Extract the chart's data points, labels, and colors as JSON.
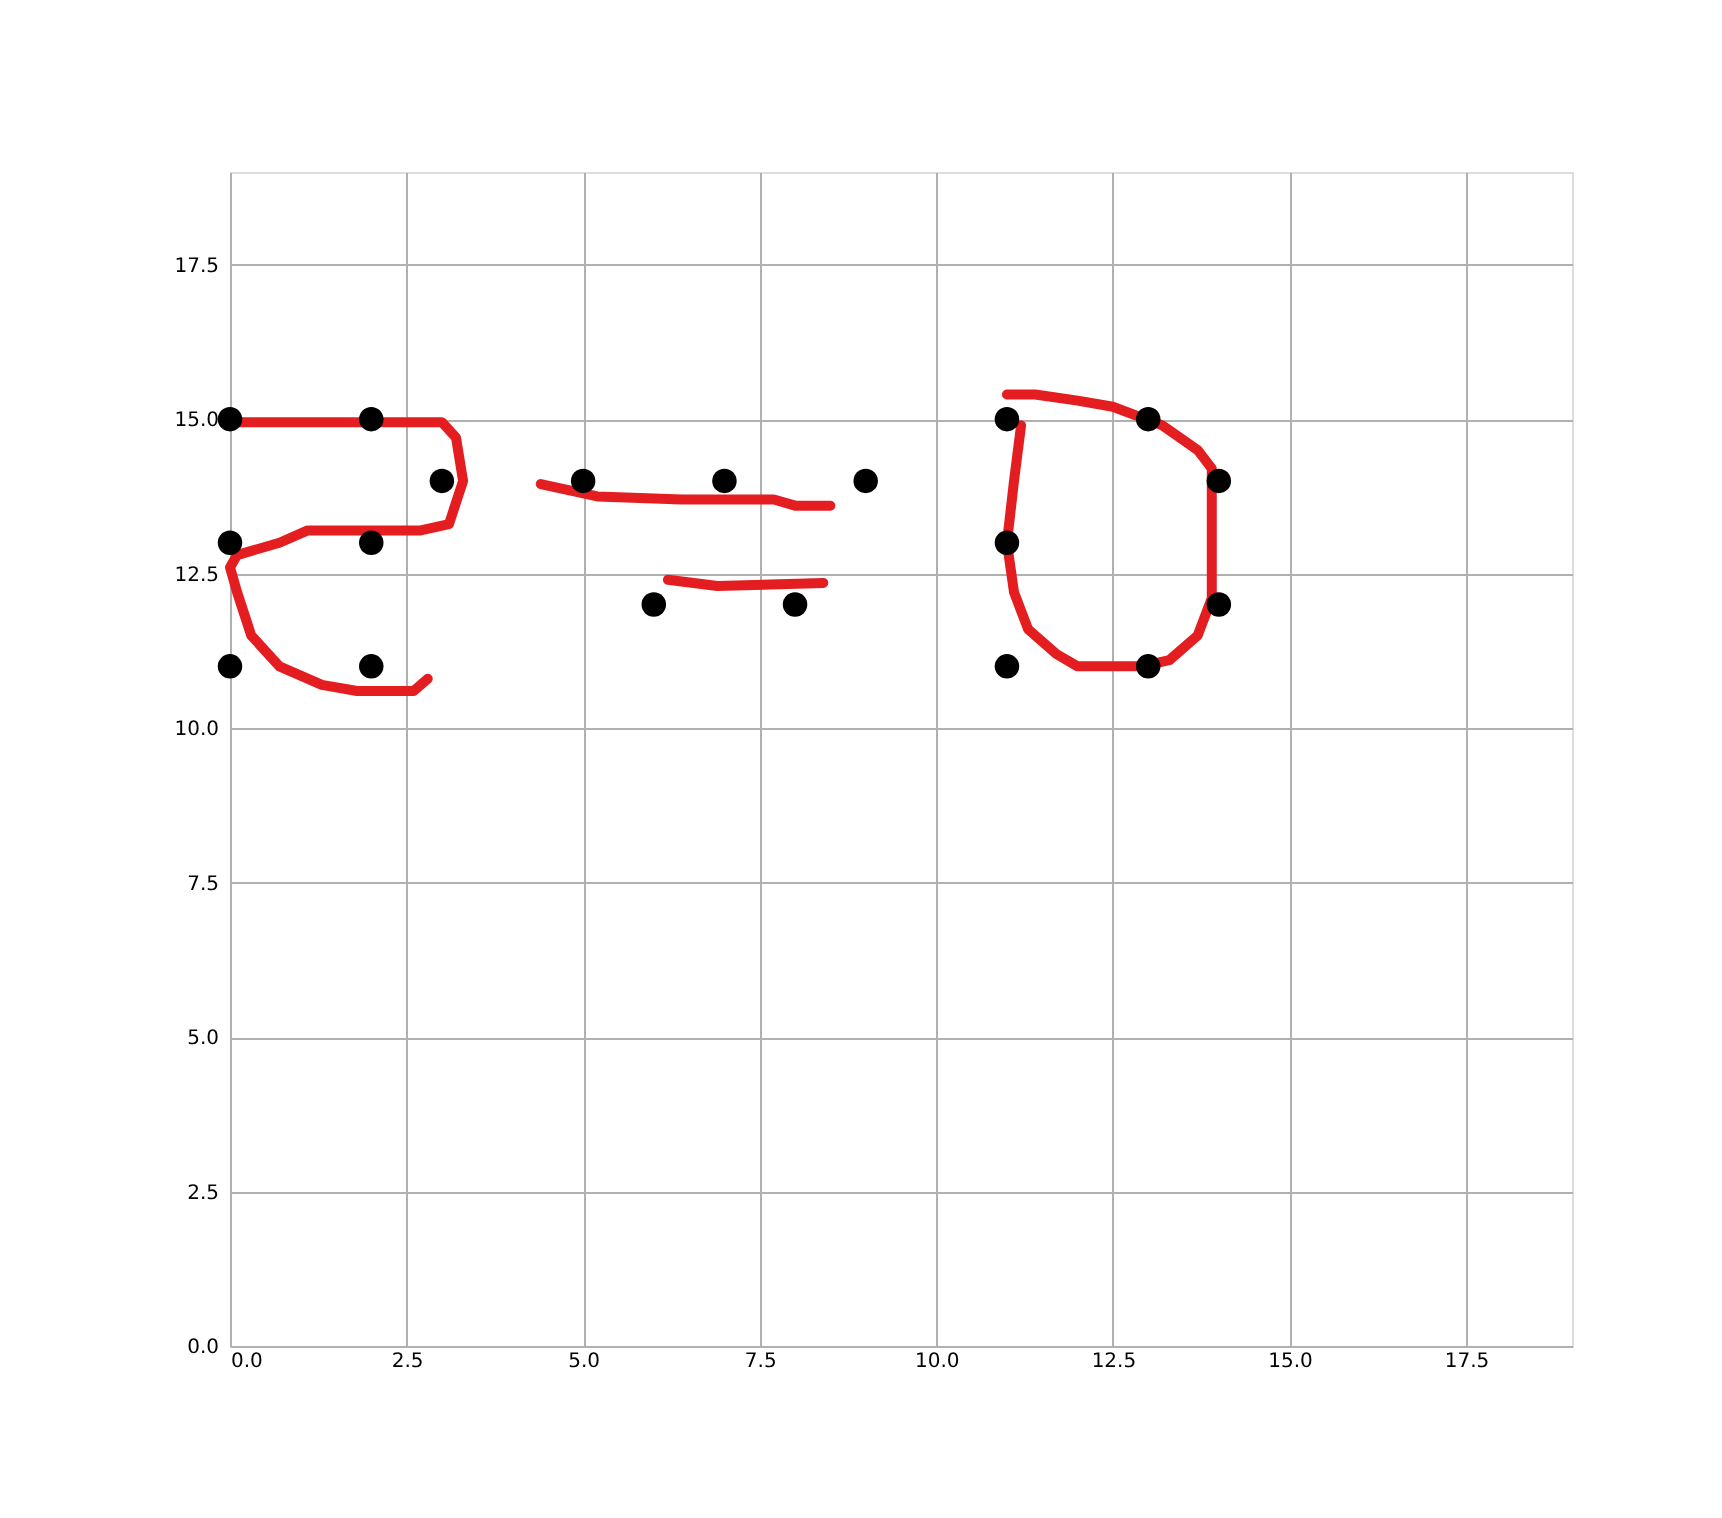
{
  "chart_data": {
    "type": "scatter",
    "xlim": [
      0,
      19
    ],
    "ylim": [
      0,
      19
    ],
    "xticks": [
      {
        "value": 0,
        "label": "0.0"
      },
      2.5,
      {
        "value": 5,
        "label": "5.0"
      },
      7.5,
      {
        "value": 10,
        "label": "10.0"
      },
      12.5,
      {
        "value": 15,
        "label": "15.0"
      },
      17.5
    ],
    "yticks": [
      {
        "value": 0,
        "label": "0.0"
      },
      2.5,
      {
        "value": 5,
        "label": "5.0"
      },
      7.5,
      {
        "value": 10,
        "label": "10.0"
      },
      12.5,
      {
        "value": 15,
        "label": "15.0"
      },
      17.5
    ],
    "grid": true,
    "line_style": "solid",
    "series": [
      {
        "marker": "circle",
        "color": "#000000",
        "x": [
          0,
          2,
          0,
          2,
          3,
          0,
          2,
          5,
          7,
          9,
          6,
          8,
          11,
          13,
          14,
          11,
          14,
          11,
          13
        ],
        "values": [
          15,
          15,
          13,
          13,
          14,
          11,
          11,
          14,
          14,
          14,
          12,
          12,
          15,
          15,
          14,
          13,
          12,
          11,
          11
        ]
      },
      {
        "type": "line",
        "color": "#e41e20",
        "x": [
          0,
          3.0,
          3.2,
          3.3,
          3.1,
          2.7,
          1.1,
          0.7,
          0.1,
          0,
          0.1,
          0.3,
          0.7,
          1.3,
          1.8,
          2.6,
          2.8
        ],
        "values": [
          14.95,
          14.95,
          14.7,
          14.0,
          13.3,
          13.2,
          13.2,
          13.0,
          12.8,
          12.6,
          12.2,
          11.5,
          11.0,
          10.7,
          10.6,
          10.6,
          10.8
        ]
      },
      {
        "type": "line",
        "color": "#e41e20",
        "x": [
          4.4,
          5.2,
          6.4,
          7.7,
          8.0,
          8.5
        ],
        "values": [
          13.95,
          13.75,
          13.7,
          13.7,
          13.6,
          13.6
        ]
      },
      {
        "type": "line",
        "color": "#e41e20",
        "x": [
          6.2,
          6.9,
          8.4
        ],
        "values": [
          12.4,
          12.3,
          12.35
        ]
      },
      {
        "type": "line",
        "color": "#e41e20",
        "x": [
          11.0,
          11.4,
          12.0,
          12.5,
          13.2,
          13.7,
          13.9,
          13.9,
          13.9,
          13.7,
          13.3,
          12.9,
          12.0,
          11.7,
          11.3,
          11.1,
          11.0,
          11.1,
          11.2
        ],
        "values": [
          15.4,
          15.4,
          15.3,
          15.2,
          14.9,
          14.5,
          14.2,
          12.9,
          12.1,
          11.5,
          11.1,
          11.0,
          11.0,
          11.2,
          11.6,
          12.2,
          13.0,
          14.0,
          14.9
        ]
      }
    ]
  }
}
